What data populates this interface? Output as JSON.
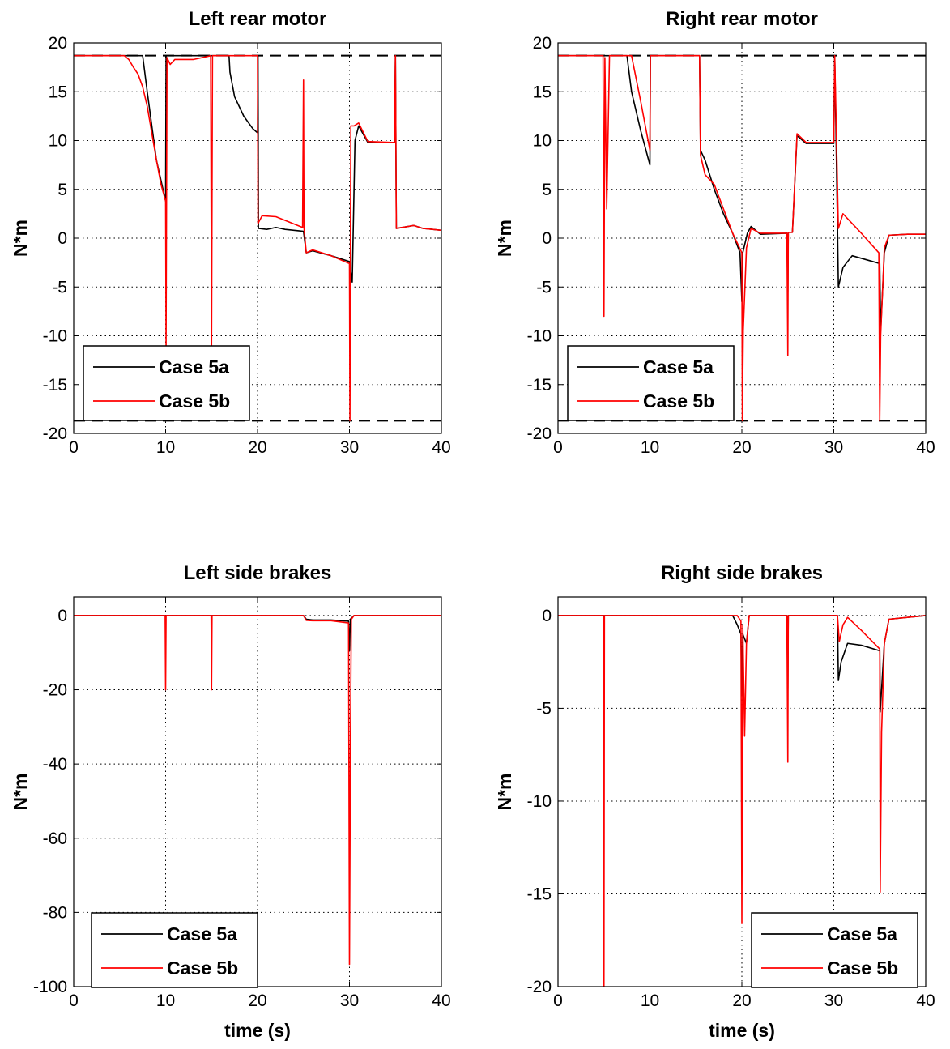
{
  "chart_data": [
    {
      "type": "line",
      "title": "Left rear motor",
      "xlabel": "",
      "ylabel": "N*m",
      "xlim": [
        0,
        40
      ],
      "ylim": [
        -20,
        20
      ],
      "xticks": [
        "0",
        "10",
        "20",
        "30",
        "40"
      ],
      "yticks": [
        "-20",
        "-15",
        "-10",
        "-5",
        "0",
        "5",
        "10",
        "15",
        "20"
      ],
      "grid": true,
      "legend": "bottom-left",
      "limit_lines": [
        18.7,
        -18.7
      ],
      "series": [
        {
          "name": "Case 5a",
          "color": "#000000",
          "points": [
            [
              0,
              18.7
            ],
            [
              7.5,
              18.7
            ],
            [
              8,
              15
            ],
            [
              9,
              8
            ],
            [
              10,
              3.8
            ],
            [
              10.05,
              18.7
            ],
            [
              16.9,
              18.7
            ],
            [
              17,
              17
            ],
            [
              17.5,
              14.5
            ],
            [
              18.5,
              12.5
            ],
            [
              19.5,
              11.2
            ],
            [
              20,
              10.8
            ],
            [
              20.05,
              18.7
            ],
            [
              20.1,
              1
            ],
            [
              21,
              0.9
            ],
            [
              22,
              1.1
            ],
            [
              23,
              0.9
            ],
            [
              25,
              0.7
            ],
            [
              25.3,
              -1.5
            ],
            [
              26,
              -1.3
            ],
            [
              28,
              -1.8
            ],
            [
              30,
              -2.4
            ],
            [
              30.3,
              -4.5
            ],
            [
              30.6,
              10
            ],
            [
              31,
              11.5
            ],
            [
              32,
              9.8
            ],
            [
              34.9,
              9.8
            ],
            [
              35,
              18.7
            ],
            [
              35.1,
              1
            ],
            [
              37,
              1.3
            ],
            [
              38,
              1
            ],
            [
              40,
              0.8
            ]
          ]
        },
        {
          "name": "Case 5b",
          "color": "#ff0000",
          "points": [
            [
              0,
              18.7
            ],
            [
              5.5,
              18.7
            ],
            [
              6,
              18.3
            ],
            [
              6.5,
              17.5
            ],
            [
              7,
              16.8
            ],
            [
              7.5,
              15.5
            ],
            [
              8,
              13.5
            ],
            [
              9,
              8
            ],
            [
              9.5,
              5.5
            ],
            [
              10,
              3.8
            ],
            [
              10.05,
              -11
            ],
            [
              10.15,
              18.5
            ],
            [
              10.5,
              17.8
            ],
            [
              11,
              18.3
            ],
            [
              13,
              18.3
            ],
            [
              14.5,
              18.6
            ],
            [
              14.9,
              18.7
            ],
            [
              15,
              -11
            ],
            [
              15.1,
              18.7
            ],
            [
              20,
              18.7
            ],
            [
              20.05,
              1.5
            ],
            [
              20.5,
              2.3
            ],
            [
              22,
              2.2
            ],
            [
              24.9,
              1.1
            ],
            [
              25,
              16.2
            ],
            [
              25.05,
              1.1
            ],
            [
              25.3,
              -1.5
            ],
            [
              26,
              -1.2
            ],
            [
              28,
              -1.8
            ],
            [
              30,
              -2.6
            ],
            [
              30.05,
              -18.7
            ],
            [
              30.15,
              11.5
            ],
            [
              30.5,
              11.5
            ],
            [
              31,
              11.8
            ],
            [
              32,
              9.9
            ],
            [
              34.9,
              9.8
            ],
            [
              35,
              18.7
            ],
            [
              35.1,
              1
            ],
            [
              37,
              1.3
            ],
            [
              38,
              1
            ],
            [
              40,
              0.8
            ]
          ]
        }
      ]
    },
    {
      "type": "line",
      "title": "Right rear motor",
      "xlabel": "",
      "ylabel": "N*m",
      "xlim": [
        0,
        40
      ],
      "ylim": [
        -20,
        20
      ],
      "xticks": [
        "0",
        "10",
        "20",
        "30",
        "40"
      ],
      "yticks": [
        "-20",
        "-15",
        "-10",
        "-5",
        "0",
        "5",
        "10",
        "15",
        "20"
      ],
      "grid": true,
      "legend": "bottom-left",
      "limit_lines": [
        18.7,
        -18.7
      ],
      "series": [
        {
          "name": "Case 5a",
          "color": "#000000",
          "points": [
            [
              0,
              18.7
            ],
            [
              7.5,
              18.7
            ],
            [
              8,
              15
            ],
            [
              9,
              11
            ],
            [
              10,
              7.5
            ],
            [
              10.05,
              18.7
            ],
            [
              15.4,
              18.7
            ],
            [
              15.5,
              9
            ],
            [
              16,
              8
            ],
            [
              17,
              5
            ],
            [
              18,
              2.5
            ],
            [
              19,
              0.5
            ],
            [
              19.8,
              -1.5
            ],
            [
              20,
              -6.5
            ],
            [
              20.1,
              -1.5
            ],
            [
              20.6,
              0.5
            ],
            [
              21,
              1.2
            ],
            [
              22,
              0.4
            ],
            [
              24.9,
              0.5
            ],
            [
              25,
              -5.5
            ],
            [
              25.05,
              0.6
            ],
            [
              25.5,
              0.6
            ],
            [
              26,
              10.5
            ],
            [
              27,
              9.7
            ],
            [
              30,
              9.7
            ],
            [
              30.1,
              18.7
            ],
            [
              30.4,
              1.5
            ],
            [
              30.5,
              -5
            ],
            [
              31,
              -3
            ],
            [
              32,
              -1.8
            ],
            [
              35,
              -2.6
            ],
            [
              35.1,
              -9.5
            ],
            [
              35.5,
              -1.5
            ],
            [
              36,
              0.3
            ],
            [
              38,
              0.4
            ],
            [
              40,
              0.4
            ]
          ]
        },
        {
          "name": "Case 5b",
          "color": "#ff0000",
          "points": [
            [
              0,
              18.7
            ],
            [
              4.9,
              18.7
            ],
            [
              5,
              -8
            ],
            [
              5.1,
              18.5
            ],
            [
              5.3,
              3
            ],
            [
              5.6,
              18.7
            ],
            [
              8,
              18.7
            ],
            [
              9,
              14
            ],
            [
              10,
              9
            ],
            [
              10.05,
              18.7
            ],
            [
              15.4,
              18.7
            ],
            [
              15.5,
              8.5
            ],
            [
              16,
              6.5
            ],
            [
              17,
              5.5
            ],
            [
              18,
              3
            ],
            [
              19,
              0.5
            ],
            [
              20,
              -1.5
            ],
            [
              20.05,
              -18.7
            ],
            [
              20.15,
              -9.5
            ],
            [
              20.5,
              -1
            ],
            [
              21,
              1
            ],
            [
              22,
              0.5
            ],
            [
              24.9,
              0.5
            ],
            [
              25,
              -12
            ],
            [
              25.05,
              0.6
            ],
            [
              25.5,
              0.6
            ],
            [
              26,
              10.7
            ],
            [
              27,
              9.8
            ],
            [
              30,
              9.8
            ],
            [
              30.1,
              18.7
            ],
            [
              30.5,
              1
            ],
            [
              31,
              2.5
            ],
            [
              32,
              1.5
            ],
            [
              33,
              0.5
            ],
            [
              34.9,
              -1.5
            ],
            [
              35,
              -18.7
            ],
            [
              35.1,
              -10
            ],
            [
              35.5,
              -1
            ],
            [
              36,
              0.3
            ],
            [
              38,
              0.4
            ],
            [
              40,
              0.4
            ]
          ]
        }
      ]
    },
    {
      "type": "line",
      "title": "Left side brakes",
      "xlabel": "time (s)",
      "ylabel": "N*m",
      "xlim": [
        0,
        40
      ],
      "ylim": [
        -100,
        5
      ],
      "xticks": [
        "0",
        "10",
        "20",
        "30",
        "40"
      ],
      "yticks": [
        "-100",
        "-80",
        "-60",
        "-40",
        "-20",
        "0"
      ],
      "grid": true,
      "legend": "bottom-left",
      "series": [
        {
          "name": "Case 5a",
          "color": "#000000",
          "points": [
            [
              0,
              0
            ],
            [
              25,
              0
            ],
            [
              25.3,
              -1
            ],
            [
              26,
              -1.2
            ],
            [
              28,
              -1.2
            ],
            [
              29.9,
              -1.5
            ],
            [
              30,
              -9.5
            ],
            [
              30.1,
              -1
            ],
            [
              30.5,
              0
            ],
            [
              40,
              0
            ]
          ]
        },
        {
          "name": "Case 5b",
          "color": "#ff0000",
          "points": [
            [
              0,
              0
            ],
            [
              9.95,
              0
            ],
            [
              10,
              -20
            ],
            [
              10.05,
              0
            ],
            [
              14.95,
              0
            ],
            [
              15,
              -20
            ],
            [
              15.05,
              0
            ],
            [
              25,
              0
            ],
            [
              25.3,
              -1.3
            ],
            [
              26,
              -1.4
            ],
            [
              28,
              -1.4
            ],
            [
              29.9,
              -2
            ],
            [
              30,
              -94
            ],
            [
              30.1,
              -37
            ],
            [
              30.2,
              -1
            ],
            [
              30.5,
              0
            ],
            [
              40,
              0
            ]
          ]
        }
      ]
    },
    {
      "type": "line",
      "title": "Right side brakes",
      "xlabel": "time (s)",
      "ylabel": "N*m",
      "xlim": [
        0,
        40
      ],
      "ylim": [
        -20,
        1
      ],
      "xticks": [
        "0",
        "10",
        "20",
        "30",
        "40"
      ],
      "yticks": [
        "-20",
        "-15",
        "-10",
        "-5",
        "0"
      ],
      "grid": true,
      "legend": "bottom-right",
      "series": [
        {
          "name": "Case 5a",
          "color": "#000000",
          "points": [
            [
              0,
              0
            ],
            [
              19,
              0
            ],
            [
              19.5,
              -0.5
            ],
            [
              19.9,
              -1
            ],
            [
              20,
              -4.3
            ],
            [
              20.1,
              -1
            ],
            [
              20.5,
              -1.5
            ],
            [
              20.8,
              0
            ],
            [
              24.9,
              0
            ],
            [
              25,
              -3.9
            ],
            [
              25.05,
              0
            ],
            [
              30.4,
              0
            ],
            [
              30.5,
              -3.5
            ],
            [
              30.8,
              -2.5
            ],
            [
              31.5,
              -1.5
            ],
            [
              33,
              -1.6
            ],
            [
              35,
              -1.9
            ],
            [
              35.05,
              -5.2
            ],
            [
              35.5,
              -1.5
            ],
            [
              36,
              -0.2
            ],
            [
              40,
              0
            ]
          ]
        },
        {
          "name": "Case 5b",
          "color": "#ff0000",
          "points": [
            [
              0,
              0
            ],
            [
              4.95,
              0
            ],
            [
              5,
              -20
            ],
            [
              5.05,
              0
            ],
            [
              19.5,
              0
            ],
            [
              19.9,
              -0.3
            ],
            [
              20,
              -16.6
            ],
            [
              20.1,
              -0.5
            ],
            [
              20.3,
              -6.5
            ],
            [
              20.5,
              -1.5
            ],
            [
              20.8,
              0
            ],
            [
              24.9,
              0
            ],
            [
              25,
              -7.9
            ],
            [
              25.05,
              0
            ],
            [
              30.4,
              0
            ],
            [
              30.6,
              -1.4
            ],
            [
              31,
              -0.5
            ],
            [
              31.5,
              -0.1
            ],
            [
              33,
              -0.8
            ],
            [
              35,
              -1.8
            ],
            [
              35.05,
              -14.9
            ],
            [
              35.2,
              -6.3
            ],
            [
              35.5,
              -1.5
            ],
            [
              36,
              -0.2
            ],
            [
              40,
              0
            ]
          ]
        }
      ]
    }
  ]
}
